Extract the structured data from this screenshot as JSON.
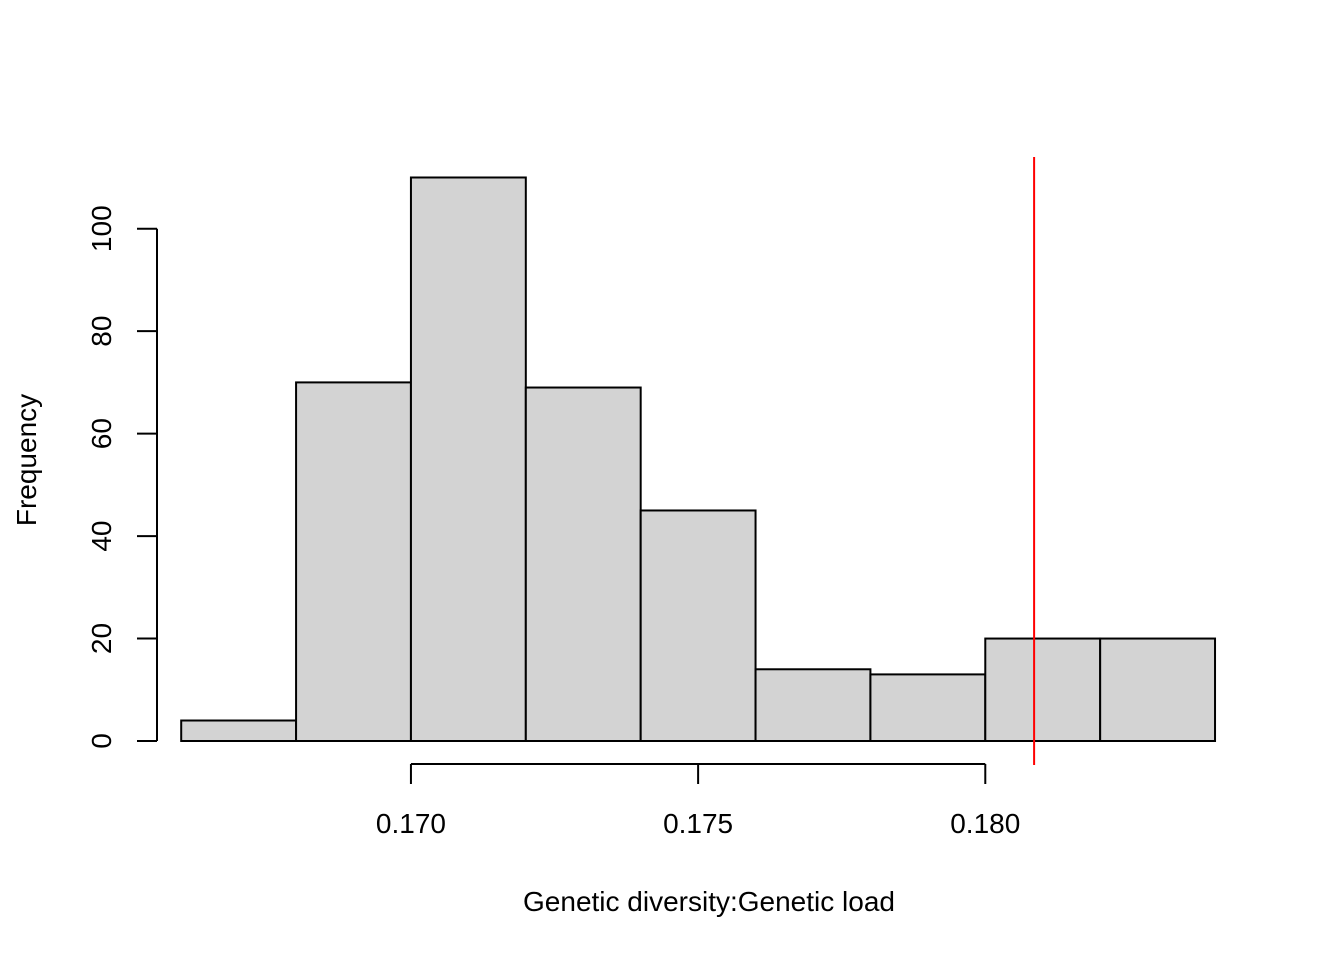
{
  "chart_data": {
    "type": "bar",
    "title": "",
    "xlabel": "Genetic diversity:Genetic load",
    "ylabel": "Frequency",
    "bins": [
      {
        "x0": 0.166,
        "x1": 0.168,
        "count": 4
      },
      {
        "x0": 0.168,
        "x1": 0.17,
        "count": 70
      },
      {
        "x0": 0.17,
        "x1": 0.172,
        "count": 110
      },
      {
        "x0": 0.172,
        "x1": 0.174,
        "count": 69
      },
      {
        "x0": 0.174,
        "x1": 0.176,
        "count": 45
      },
      {
        "x0": 0.176,
        "x1": 0.178,
        "count": 14
      },
      {
        "x0": 0.178,
        "x1": 0.18,
        "count": 13
      },
      {
        "x0": 0.18,
        "x1": 0.182,
        "count": 20
      },
      {
        "x0": 0.182,
        "x1": 0.184,
        "count": 20
      }
    ],
    "x_ticks": [
      0.17,
      0.175,
      0.18
    ],
    "x_tick_labels": [
      "0.170",
      "0.175",
      "0.180"
    ],
    "y_ticks": [
      0,
      20,
      40,
      60,
      80,
      100
    ],
    "y_tick_labels": [
      "0",
      "20",
      "40",
      "60",
      "80",
      "100"
    ],
    "xlim": [
      0.1653,
      0.1844
    ],
    "ylim": [
      0,
      114
    ],
    "reference_line": {
      "x": 0.18085,
      "color": "#ff0000"
    },
    "bar_fill": "#d3d3d3",
    "bar_stroke": "#000000",
    "grid": false,
    "legend": "none"
  }
}
